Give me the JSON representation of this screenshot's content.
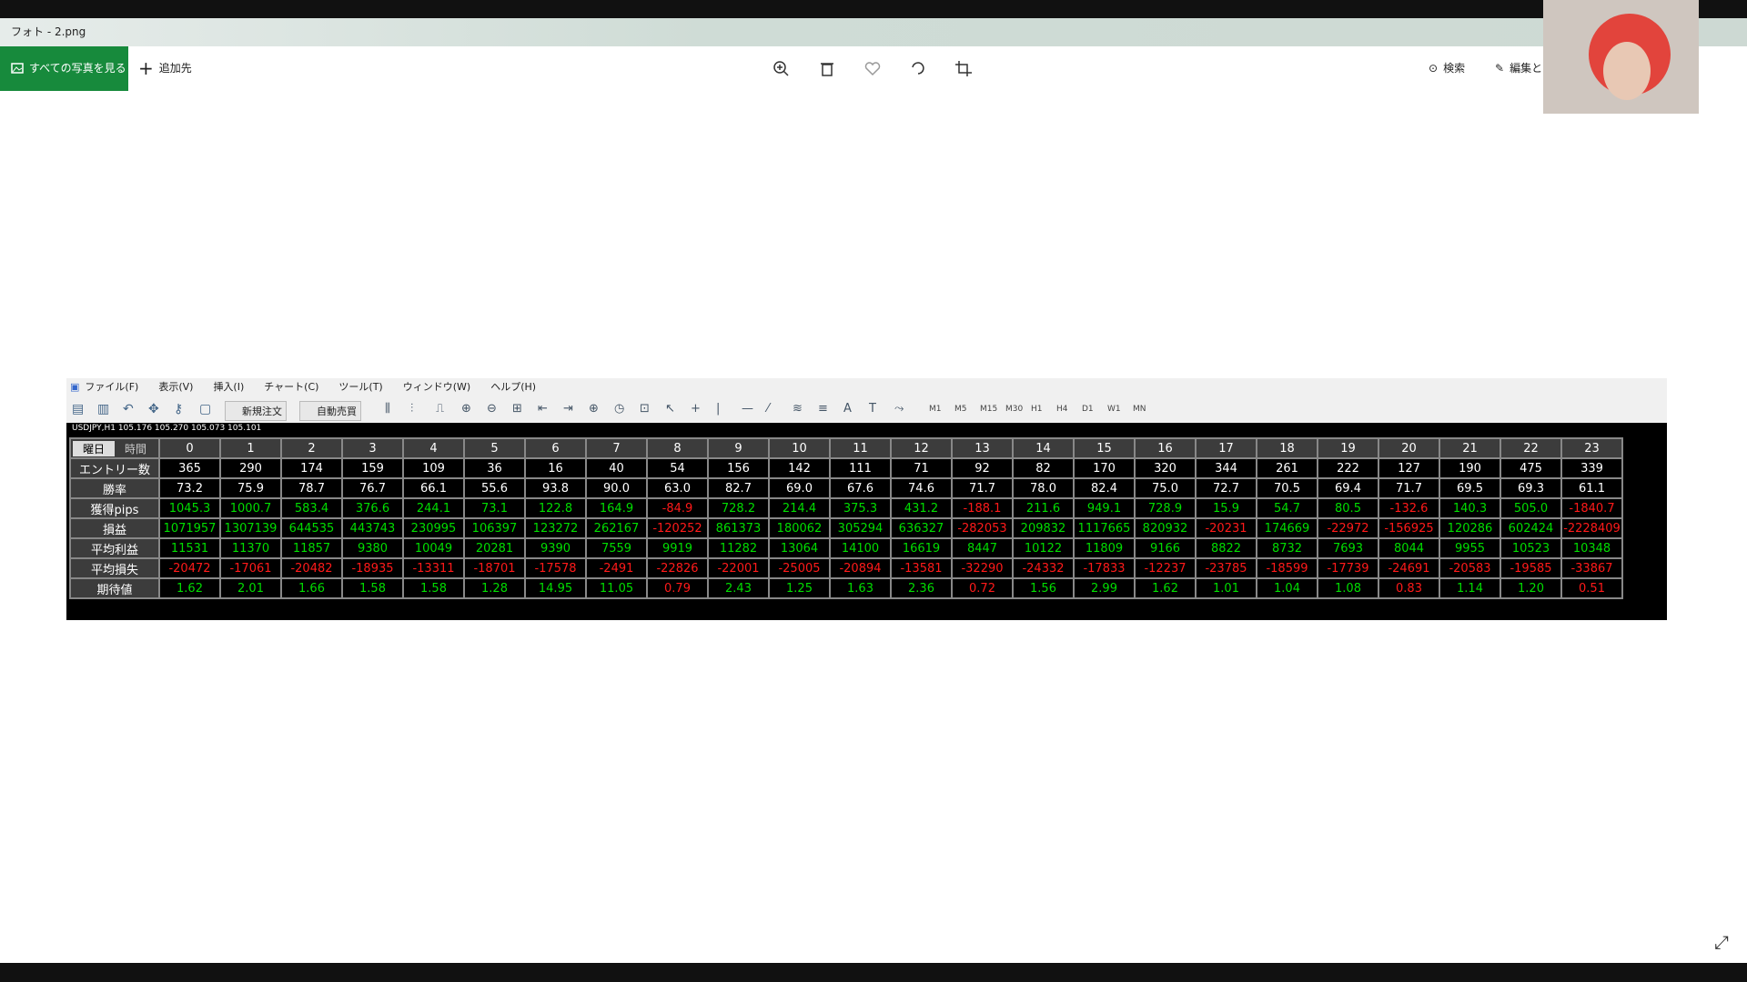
{
  "window": {
    "title": "フォト - 2.png"
  },
  "toolbar": {
    "view_all": "すべての写真を見る",
    "add_to": "追加先",
    "search": "検索",
    "edit": "編集と"
  },
  "mt4": {
    "menu": [
      "ファイル(F)",
      "表示(V)",
      "挿入(I)",
      "チャート(C)",
      "ツール(T)",
      "ウィンドウ(W)",
      "ヘルプ(H)"
    ],
    "buttons": [
      "新規注文",
      "自動売買"
    ],
    "timeframes": [
      "M1",
      "M5",
      "M15",
      "M30",
      "H1",
      "H4",
      "D1",
      "W1",
      "MN"
    ],
    "chart_label": "USDJPY,H1 105.176 105.270 105.073 105.101"
  },
  "table": {
    "corner": [
      "曜日",
      "時間"
    ],
    "hours": [
      0,
      1,
      2,
      3,
      4,
      5,
      6,
      7,
      8,
      9,
      10,
      11,
      12,
      13,
      14,
      15,
      16,
      17,
      18,
      19,
      20,
      21,
      22,
      23
    ],
    "colors": {
      "neutral": "#ffffff",
      "positive": "#00dd00",
      "negative": "#ff1a1a"
    },
    "rows": [
      {
        "label": "エントリー数",
        "colored": false,
        "cells": [
          "365",
          "290",
          "174",
          "159",
          "109",
          "36",
          "16",
          "40",
          "54",
          "156",
          "142",
          "111",
          "71",
          "92",
          "82",
          "170",
          "320",
          "344",
          "261",
          "222",
          "127",
          "190",
          "475",
          "339"
        ]
      },
      {
        "label": "勝率",
        "colored": false,
        "cells": [
          "73.2",
          "75.9",
          "78.7",
          "76.7",
          "66.1",
          "55.6",
          "93.8",
          "90.0",
          "63.0",
          "82.7",
          "69.0",
          "67.6",
          "74.6",
          "71.7",
          "78.0",
          "82.4",
          "75.0",
          "72.7",
          "70.5",
          "69.4",
          "71.7",
          "69.5",
          "69.3",
          "61.1"
        ]
      },
      {
        "label": "獲得pips",
        "colored": true,
        "break_even": 0,
        "cells": [
          "1045.3",
          "1000.7",
          "583.4",
          "376.6",
          "244.1",
          "73.1",
          "122.8",
          "164.9",
          "-84.9",
          "728.2",
          "214.4",
          "375.3",
          "431.2",
          "-188.1",
          "211.6",
          "949.1",
          "728.9",
          "15.9",
          "54.7",
          "80.5",
          "-132.6",
          "140.3",
          "505.0",
          "-1840.7"
        ]
      },
      {
        "label": "損益",
        "colored": true,
        "break_even": 0,
        "cells": [
          "1071957",
          "1307139",
          "644535",
          "443743",
          "230995",
          "106397",
          "123272",
          "262167",
          "-120252",
          "861373",
          "180062",
          "305294",
          "636327",
          "-282053",
          "209832",
          "1117665",
          "820932",
          "-20231",
          "174669",
          "-22972",
          "-156925",
          "120286",
          "602424",
          "-2228409"
        ]
      },
      {
        "label": "平均利益",
        "colored": true,
        "break_even": 0,
        "cells": [
          "11531",
          "11370",
          "11857",
          "9380",
          "10049",
          "20281",
          "9390",
          "7559",
          "9919",
          "11282",
          "13064",
          "14100",
          "16619",
          "8447",
          "10122",
          "11809",
          "9166",
          "8822",
          "8732",
          "7693",
          "8044",
          "9955",
          "10523",
          "10348"
        ]
      },
      {
        "label": "平均損失",
        "colored": true,
        "break_even": 0,
        "cells": [
          "-20472",
          "-17061",
          "-20482",
          "-18935",
          "-13311",
          "-18701",
          "-17578",
          "-2491",
          "-22826",
          "-22001",
          "-25005",
          "-20894",
          "-13581",
          "-32290",
          "-24332",
          "-17833",
          "-12237",
          "-23785",
          "-18599",
          "-17739",
          "-24691",
          "-20583",
          "-19585",
          "-33867"
        ]
      },
      {
        "label": "期待値",
        "colored": true,
        "break_even": 1,
        "cells": [
          "1.62",
          "2.01",
          "1.66",
          "1.58",
          "1.58",
          "1.28",
          "14.95",
          "11.05",
          "0.79",
          "2.43",
          "1.25",
          "1.63",
          "2.36",
          "0.72",
          "1.56",
          "2.99",
          "1.62",
          "1.01",
          "1.04",
          "1.08",
          "0.83",
          "1.14",
          "1.20",
          "0.51"
        ]
      }
    ]
  }
}
